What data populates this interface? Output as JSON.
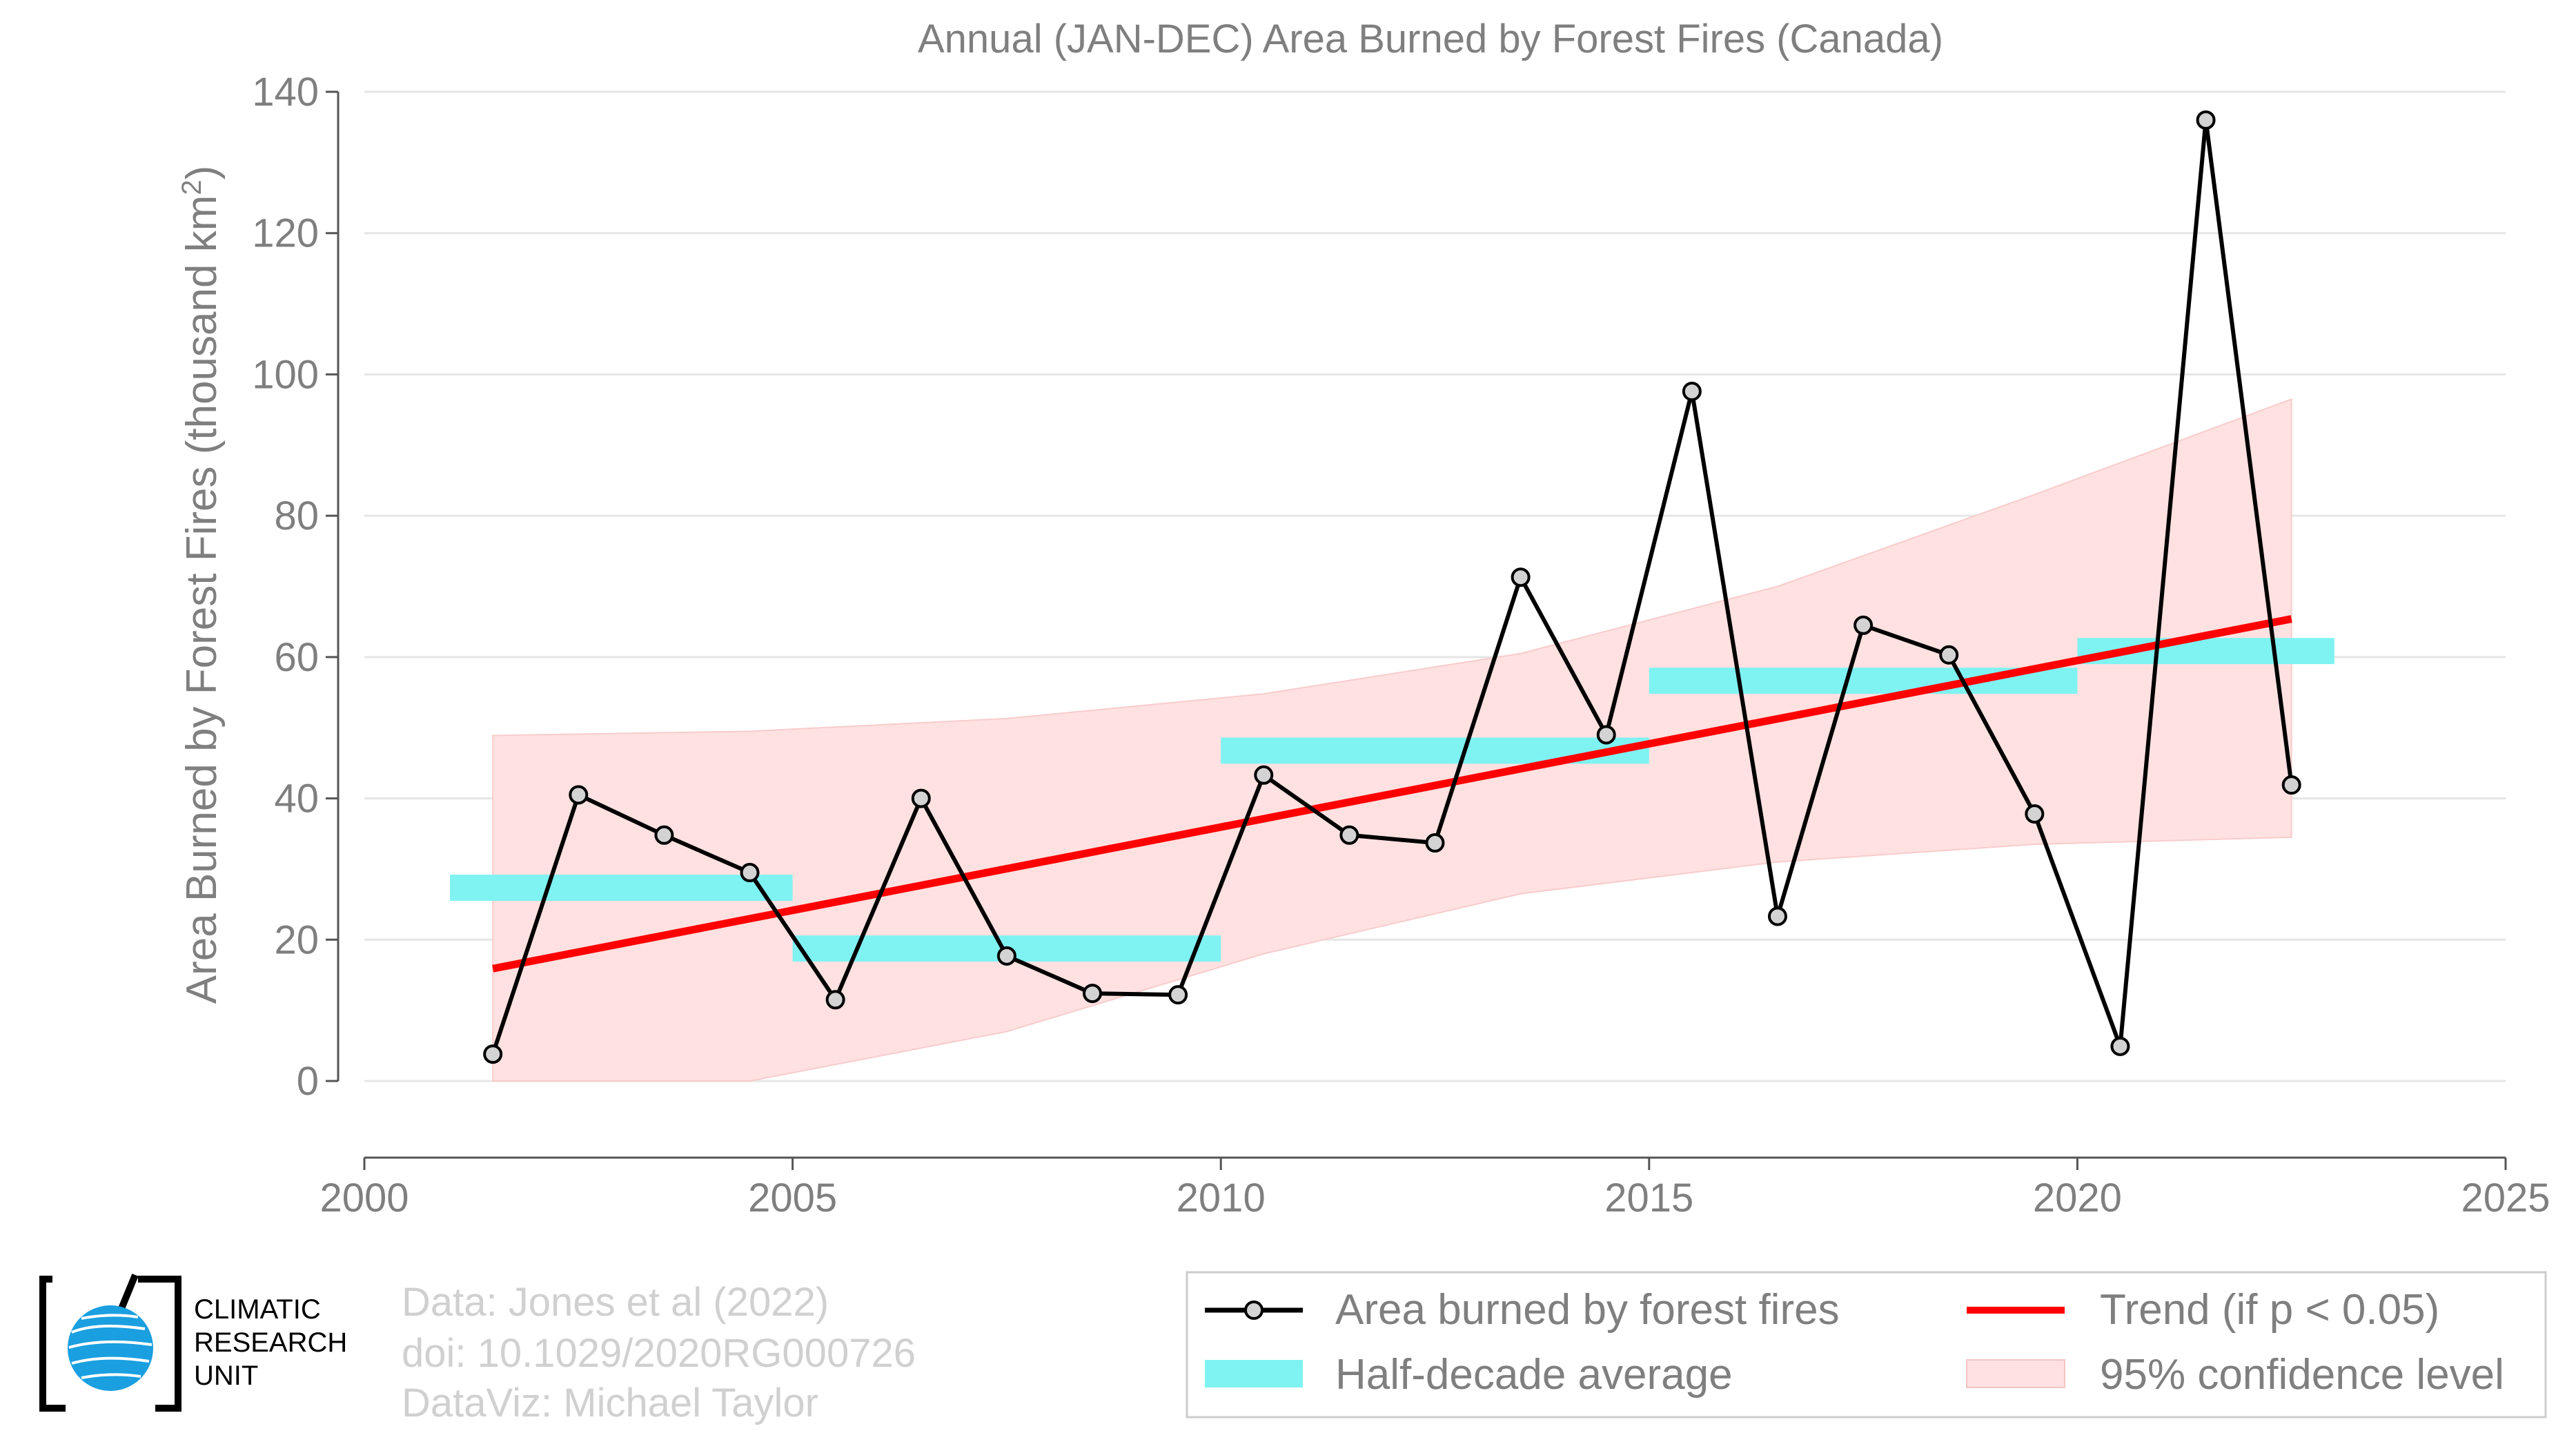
{
  "chart_data": {
    "type": "line",
    "title": "Annual (JAN-DEC) Area Burned by Forest Fires (Canada)",
    "ylabel": "Area Burned by Forest Fires (thousand km",
    "ylabel_sup": "2",
    "ylabel_end": ")",
    "xlim": [
      2000,
      2025
    ],
    "ylim": [
      -11,
      140
    ],
    "x_ticks": [
      2000,
      2005,
      2010,
      2015,
      2020,
      2025
    ],
    "x_tick_labels": [
      "2000",
      "2005",
      "2010",
      "2015",
      "2020",
      "2025"
    ],
    "y_ticks": [
      0,
      20,
      40,
      60,
      80,
      100,
      120,
      140
    ],
    "y_tick_labels": [
      "0",
      "20",
      "40",
      "60",
      "80",
      "100",
      "120",
      "140"
    ],
    "grid": "horizontal",
    "series": [
      {
        "name": "Area burned by forest fires",
        "color": "#000000",
        "marker_fill": "#d3d3d3",
        "x": [
          2001.5,
          2002.5,
          2003.5,
          2004.5,
          2005.5,
          2006.5,
          2007.5,
          2008.5,
          2009.5,
          2010.5,
          2011.5,
          2012.5,
          2013.5,
          2014.5,
          2015.5,
          2016.5,
          2017.5,
          2018.5,
          2019.5,
          2020.5,
          2021.5,
          2022.5
        ],
        "y": [
          3.8,
          40.5,
          34.8,
          29.5,
          11.5,
          40.0,
          17.7,
          12.4,
          12.2,
          43.3,
          34.8,
          33.7,
          71.3,
          49.0,
          97.6,
          23.3,
          64.5,
          60.3,
          37.8,
          4.9,
          136.0,
          41.9
        ]
      },
      {
        "name": "Half-decade average",
        "color": "#7ff2f2",
        "segments": [
          {
            "x0": 2001.0,
            "x1": 2005.0,
            "y0": 25.5,
            "y1": 29.2
          },
          {
            "x0": 2005.0,
            "x1": 2010.0,
            "y0": 16.9,
            "y1": 20.6
          },
          {
            "x0": 2010.0,
            "x1": 2015.0,
            "y0": 44.9,
            "y1": 48.6
          },
          {
            "x0": 2015.0,
            "x1": 2020.0,
            "y0": 54.8,
            "y1": 58.5
          },
          {
            "x0": 2020.0,
            "x1": 2023.0,
            "y0": 59.0,
            "y1": 62.7
          }
        ]
      },
      {
        "name": "Trend (if p < 0.05)",
        "color": "#ff0000",
        "x": [
          2001.5,
          2022.5
        ],
        "y": [
          15.9,
          65.4
        ]
      },
      {
        "name": "95% confidence level",
        "color": "#ffe1e1",
        "x": [
          2001.5,
          2004.5,
          2007.5,
          2010.5,
          2013.5,
          2016.5,
          2019.5,
          2022.5
        ],
        "upper": [
          48.9,
          49.5,
          51.3,
          54.8,
          60.5,
          70.0,
          83.0,
          96.5
        ],
        "lower": [
          0.0,
          0.0,
          7.0,
          18.0,
          26.5,
          31.0,
          33.5,
          34.5
        ]
      }
    ],
    "legend_position": "bottom-right"
  },
  "legend": {
    "items": [
      {
        "label": "Area burned by forest fires",
        "kind": "line-marker"
      },
      {
        "label": "Half-decade average",
        "kind": "cyan-patch"
      },
      {
        "label": "Trend (if p < 0.05)",
        "kind": "red-line"
      },
      {
        "label": "95% confidence level",
        "kind": "pink-patch"
      }
    ]
  },
  "credits": {
    "line1": "Data: Jones et al (2022)",
    "line2": "doi: 10.1029/2020RG000726",
    "line3": "DataViz: Michael Taylor"
  },
  "logo": {
    "line1": "CLIMATIC",
    "line2": "RESEARCH",
    "line3": "UNIT",
    "icon": "globe-icon"
  }
}
